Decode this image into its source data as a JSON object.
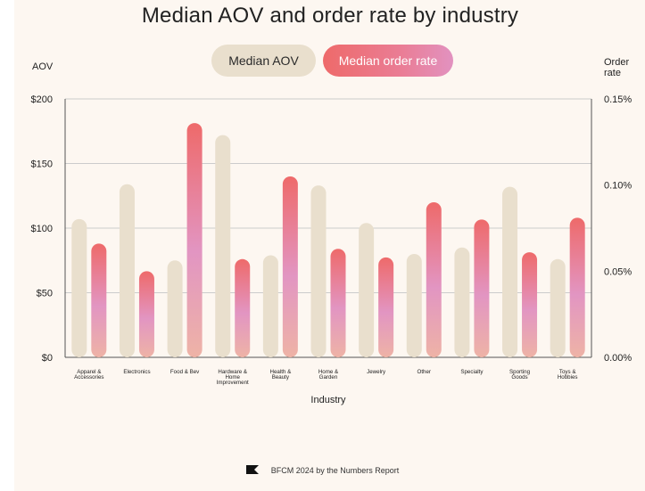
{
  "colors": {
    "aov_bar": "#e9dfcd",
    "rate_top": "#ee6a6a",
    "rate_mid": "#e295c2",
    "rate_bottom": "#eeb3a6",
    "grid": "#cccccc",
    "background": "#fdf7f1"
  },
  "legend": {
    "aov_label": "Median AOV",
    "rate_label": "Median order rate"
  },
  "axes": {
    "left_title": "AOV",
    "right_title_line1": "Order",
    "right_title_line2": "rate",
    "left_ticks": [
      "$0",
      "$50",
      "$100",
      "$150",
      "$200"
    ],
    "right_ticks": [
      "0.00%",
      "0.05%",
      "0.10%",
      "0.15%"
    ]
  },
  "footer": {
    "text": "BFCM 2024 by the Numbers Report",
    "icon": "flag-icon"
  },
  "chart_data": {
    "type": "bar",
    "title": "Median AOV and order rate by industry",
    "xlabel": "Industry",
    "ylabel": "AOV",
    "y2label": "Order rate",
    "ylim": [
      0,
      200
    ],
    "y2lim": [
      0,
      0.15
    ],
    "grid": true,
    "legend_position": "top-center",
    "categories": [
      [
        "Apparel &",
        "Accessories"
      ],
      [
        "Electronics"
      ],
      [
        "Food & Bev"
      ],
      [
        "Hardware &",
        "Home",
        "Improvement"
      ],
      [
        "Health &",
        "Beauty"
      ],
      [
        "Home &",
        "Garden"
      ],
      [
        "Jewelry"
      ],
      [
        "Other"
      ],
      [
        "Specialty"
      ],
      [
        "Sporting",
        "Goods"
      ],
      [
        "Toys &",
        "Hobbies"
      ]
    ],
    "series": [
      {
        "name": "Median AOV",
        "axis": "left",
        "unit": "$",
        "values": [
          107,
          134,
          75,
          172,
          79,
          133,
          104,
          80,
          85,
          132,
          76
        ]
      },
      {
        "name": "Median order rate",
        "axis": "right",
        "unit": "%",
        "values": [
          0.066,
          0.05,
          0.136,
          0.057,
          0.105,
          0.063,
          0.058,
          0.09,
          0.08,
          0.061,
          0.081
        ]
      }
    ]
  }
}
